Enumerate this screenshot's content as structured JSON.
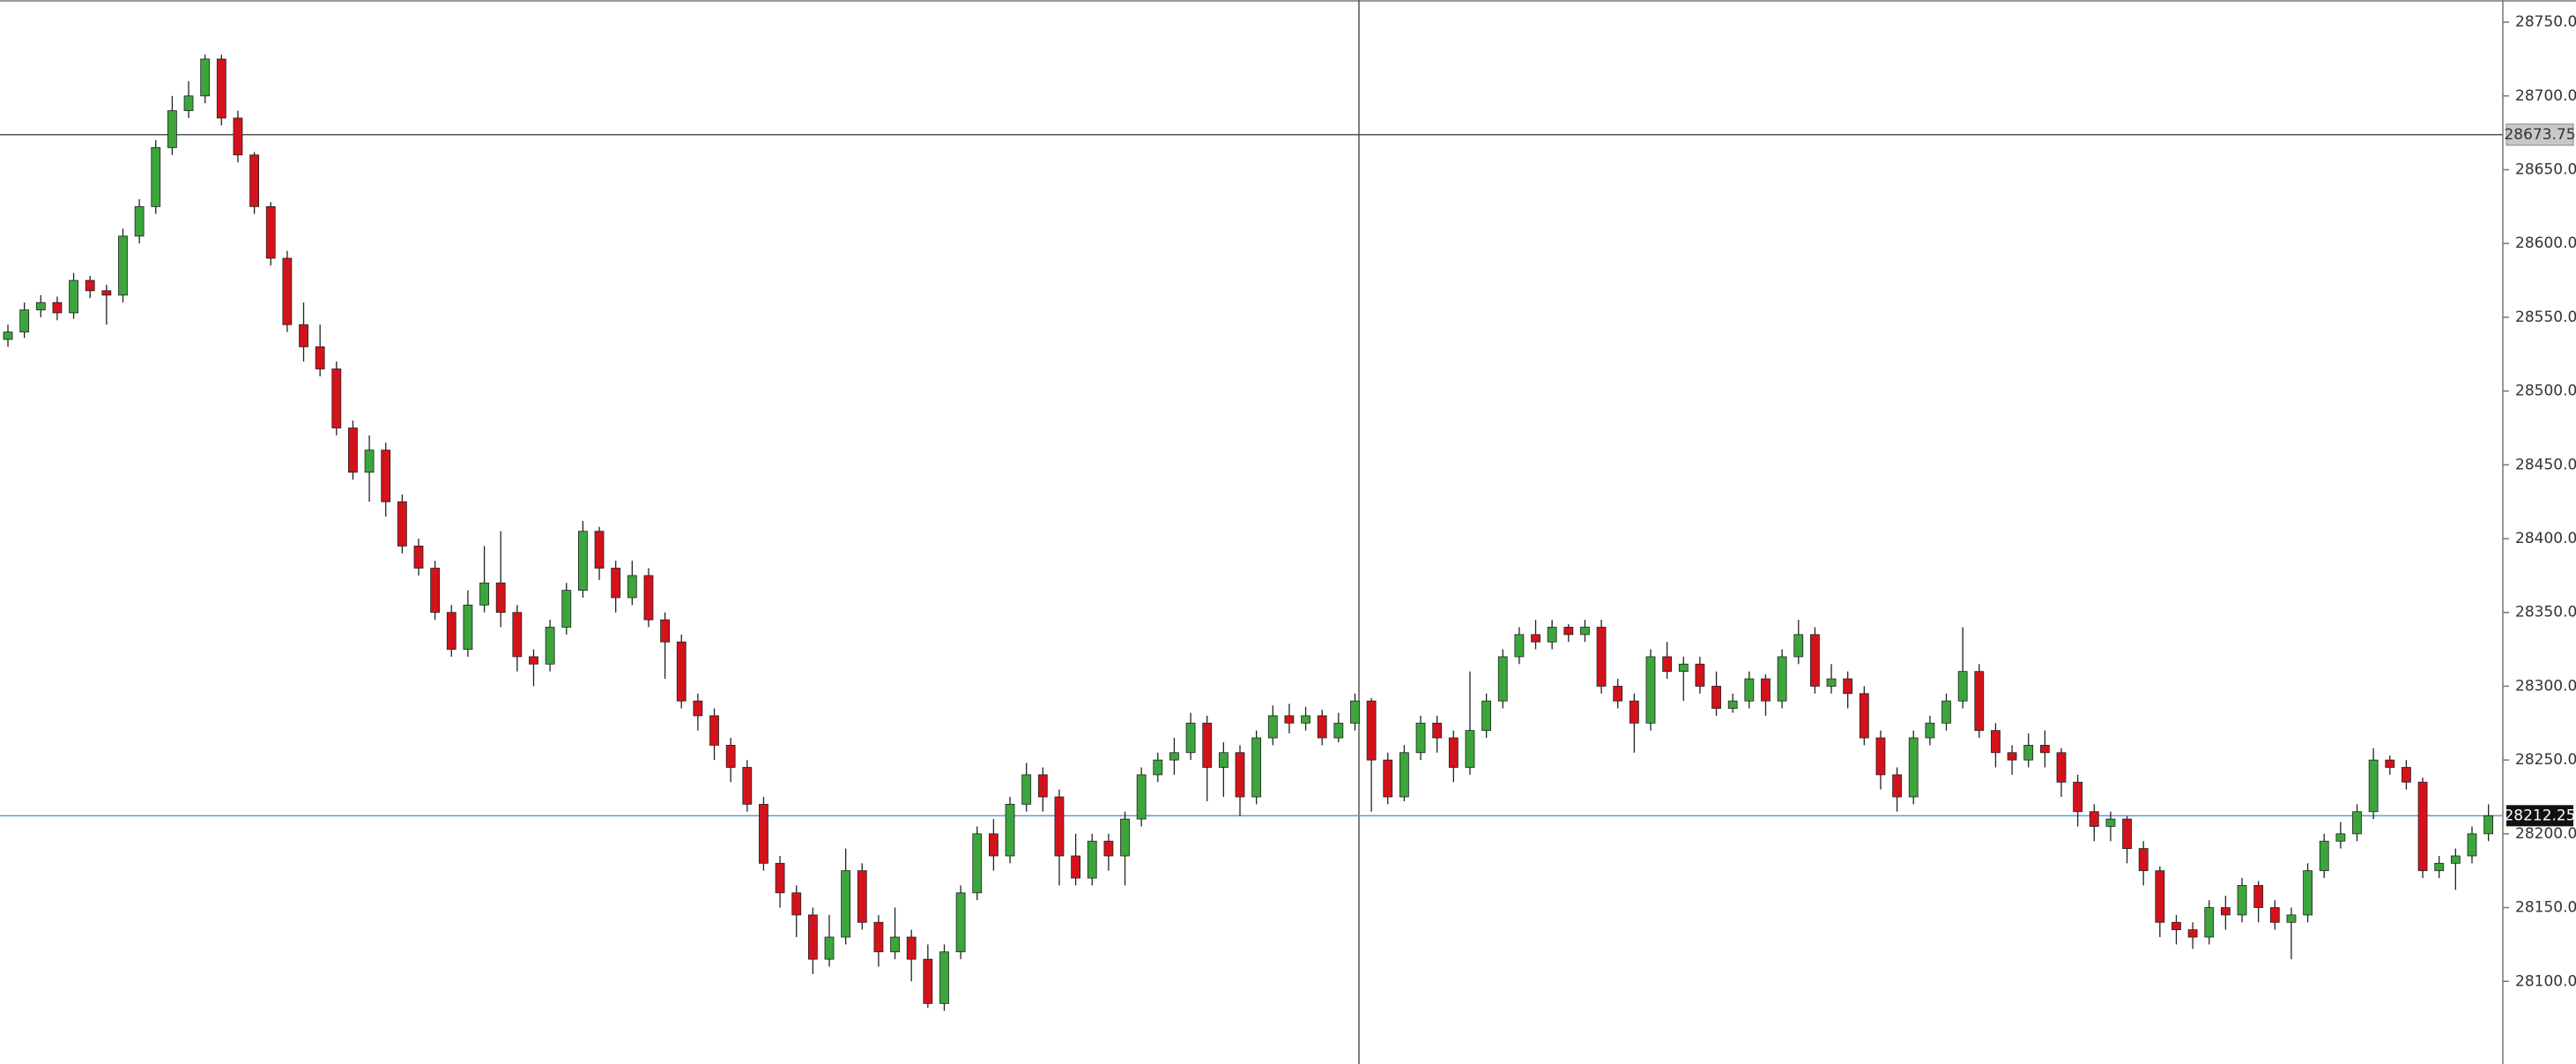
{
  "chart_data": {
    "type": "candlestick",
    "up_color": "#3ca53c",
    "down_color": "#d4121b",
    "ylim": [
      28044,
      28765
    ],
    "yticks": [
      {
        "value": 28100,
        "label": "28100.00"
      },
      {
        "value": 28150,
        "label": "28150.00"
      },
      {
        "value": 28200,
        "label": "28200.00"
      },
      {
        "value": 28250,
        "label": "28250.00"
      },
      {
        "value": 28300,
        "label": "28300.00"
      },
      {
        "value": 28350,
        "label": "28350.00"
      },
      {
        "value": 28400,
        "label": "28400.00"
      },
      {
        "value": 28450,
        "label": "28450.00"
      },
      {
        "value": 28500,
        "label": "28500.00"
      },
      {
        "value": 28550,
        "label": "28550.00"
      },
      {
        "value": 28600,
        "label": "28600.00"
      },
      {
        "value": 28650,
        "label": "28650.00"
      },
      {
        "value": 28700,
        "label": "28700.00"
      },
      {
        "value": 28750,
        "label": "28750.00"
      }
    ],
    "last_price": 28212.25,
    "crosshair_price": 28673.75,
    "open": [
      28535,
      28540,
      28555,
      28560,
      28553,
      28575,
      28568,
      28565,
      28605,
      28625,
      28665,
      28690,
      28700,
      28725,
      28685,
      28660,
      28625,
      28590,
      28545,
      28530,
      28515,
      28475,
      28445,
      28460,
      28425,
      28395,
      28380,
      28350,
      28325,
      28355,
      28370,
      28350,
      28320,
      28315,
      28340,
      28365,
      28405,
      28380,
      28360,
      28375,
      28345,
      28330,
      28290,
      28280,
      28260,
      28245,
      28220,
      28180,
      28160,
      28145,
      28115,
      28130,
      28175,
      28140,
      28120,
      28130,
      28115,
      28085,
      28120,
      28160,
      28200,
      28185,
      28220,
      28240,
      28225,
      28185,
      28170,
      28195,
      28185,
      28210,
      28240,
      28250,
      28255,
      28275,
      28245,
      28255,
      28225,
      28265,
      28280,
      28275,
      28280,
      28265,
      28275,
      28290,
      28250,
      28225,
      28255,
      28275,
      28265,
      28245,
      28270,
      28290,
      28320,
      28335,
      28330,
      28340,
      28335,
      28340,
      28300,
      28290,
      28275,
      28320,
      28310,
      28315,
      28300,
      28285,
      28290,
      28305,
      28290,
      28320,
      28335,
      28300,
      28305,
      28295,
      28265,
      28240,
      28225,
      28265,
      28275,
      28290,
      28310,
      28270,
      28255,
      28250,
      28260,
      28255,
      28235,
      28215,
      28205,
      28210,
      28190,
      28175,
      28140,
      28135,
      28130,
      28150,
      28145,
      28165,
      28150,
      28140,
      28145,
      28175,
      28195,
      28200,
      28215,
      28250,
      28245,
      28235,
      28175,
      28180,
      28185,
      28200
    ],
    "high": [
      28545,
      28560,
      28565,
      28564,
      28580,
      28578,
      28572,
      28610,
      28630,
      28670,
      28700,
      28710,
      28728,
      28728,
      28690,
      28662,
      28628,
      28595,
      28560,
      28545,
      28520,
      28480,
      28470,
      28465,
      28430,
      28400,
      28385,
      28355,
      28365,
      28395,
      28405,
      28355,
      28325,
      28345,
      28370,
      28412,
      28408,
      28385,
      28385,
      28380,
      28350,
      28335,
      28295,
      28285,
      28265,
      28250,
      28225,
      28185,
      28165,
      28150,
      28145,
      28190,
      28180,
      28145,
      28150,
      28135,
      28125,
      28125,
      28165,
      28205,
      28210,
      28225,
      28248,
      28245,
      28230,
      28200,
      28200,
      28200,
      28215,
      28245,
      28255,
      28265,
      28282,
      28280,
      28262,
      28260,
      28270,
      28287,
      28288,
      28286,
      28284,
      28282,
      28295,
      28292,
      28255,
      28260,
      28280,
      28280,
      28270,
      28310,
      28295,
      28325,
      28340,
      28345,
      28345,
      28342,
      28345,
      28345,
      28305,
      28295,
      28325,
      28330,
      28320,
      28320,
      28310,
      28295,
      28310,
      28308,
      28325,
      28345,
      28340,
      28315,
      28310,
      28300,
      28270,
      28245,
      28270,
      28280,
      28295,
      28340,
      28315,
      28275,
      28260,
      28268,
      28270,
      28258,
      28240,
      28220,
      28215,
      28212,
      28195,
      28178,
      28145,
      28140,
      28155,
      28158,
      28170,
      28168,
      28155,
      28150,
      28180,
      28200,
      28208,
      28220,
      28258,
      28253,
      28250,
      28238,
      28185,
      28190,
      28205,
      28220
    ],
    "low": [
      28530,
      28536,
      28550,
      28548,
      28549,
      28563,
      28545,
      28560,
      28600,
      28620,
      28660,
      28685,
      28695,
      28680,
      28655,
      28620,
      28585,
      28540,
      28520,
      28510,
      28470,
      28440,
      28425,
      28415,
      28390,
      28375,
      28345,
      28320,
      28320,
      28350,
      28340,
      28310,
      28300,
      28310,
      28335,
      28360,
      28372,
      28350,
      28355,
      28340,
      28305,
      28285,
      28270,
      28250,
      28235,
      28215,
      28175,
      28150,
      28130,
      28105,
      28110,
      28125,
      28135,
      28110,
      28115,
      28100,
      28082,
      28080,
      28115,
      28155,
      28175,
      28180,
      28215,
      28215,
      28165,
      28165,
      28165,
      28175,
      28165,
      28205,
      28235,
      28240,
      28250,
      28222,
      28225,
      28212,
      28220,
      28260,
      28268,
      28270,
      28260,
      28262,
      28270,
      28215,
      28220,
      28222,
      28250,
      28255,
      28235,
      28240,
      28265,
      28285,
      28315,
      28325,
      28325,
      28330,
      28330,
      28295,
      28285,
      28255,
      28270,
      28305,
      28290,
      28295,
      28280,
      28282,
      28285,
      28280,
      28285,
      28315,
      28295,
      28295,
      28285,
      28260,
      28230,
      28215,
      28220,
      28260,
      28270,
      28285,
      28265,
      28245,
      28240,
      28245,
      28245,
      28225,
      28205,
      28195,
      28195,
      28180,
      28165,
      28130,
      28125,
      28122,
      28125,
      28135,
      28140,
      28140,
      28135,
      28115,
      28140,
      28170,
      28190,
      28195,
      28210,
      28240,
      28230,
      28170,
      28170,
      28162,
      28180,
      28195
    ],
    "close": [
      28540,
      28555,
      28560,
      28553,
      28575,
      28568,
      28565,
      28605,
      28625,
      28665,
      28690,
      28700,
      28725,
      28685,
      28660,
      28625,
      28590,
      28545,
      28530,
      28515,
      28475,
      28445,
      28460,
      28425,
      28395,
      28380,
      28350,
      28325,
      28355,
      28370,
      28350,
      28320,
      28315,
      28340,
      28365,
      28405,
      28380,
      28360,
      28375,
      28345,
      28330,
      28290,
      28280,
      28260,
      28245,
      28220,
      28180,
      28160,
      28145,
      28115,
      28130,
      28175,
      28140,
      28120,
      28130,
      28115,
      28085,
      28120,
      28160,
      28200,
      28185,
      28220,
      28240,
      28225,
      28185,
      28170,
      28195,
      28185,
      28210,
      28240,
      28250,
      28255,
      28275,
      28245,
      28255,
      28225,
      28265,
      28280,
      28275,
      28280,
      28265,
      28275,
      28290,
      28250,
      28225,
      28255,
      28275,
      28265,
      28245,
      28270,
      28290,
      28320,
      28335,
      28330,
      28340,
      28335,
      28340,
      28300,
      28290,
      28275,
      28320,
      28310,
      28315,
      28300,
      28285,
      28290,
      28305,
      28290,
      28320,
      28335,
      28300,
      28305,
      28295,
      28265,
      28240,
      28225,
      28265,
      28275,
      28290,
      28310,
      28270,
      28255,
      28250,
      28260,
      28255,
      28235,
      28215,
      28205,
      28210,
      28190,
      28175,
      28140,
      28135,
      28130,
      28150,
      28145,
      28165,
      28150,
      28140,
      28145,
      28175,
      28195,
      28200,
      28215,
      28250,
      28245,
      28235,
      28175,
      28180,
      28185,
      28200,
      28212.25
    ]
  }
}
